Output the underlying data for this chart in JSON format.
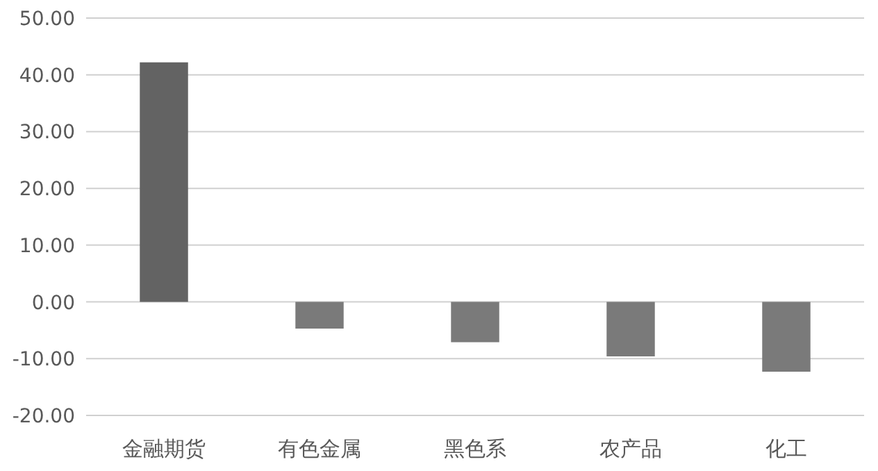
{
  "chart_data": {
    "type": "bar",
    "categories": [
      "金融期货",
      "有色金属",
      "黑色系",
      "农产品",
      "化工"
    ],
    "values": [
      42.2,
      -4.7,
      -7.1,
      -9.6,
      -12.3
    ],
    "colors": [
      "#636363",
      "#7a7a7a",
      "#7a7a7a",
      "#7a7a7a",
      "#7a7a7a"
    ],
    "ylim": [
      -20,
      50
    ],
    "yticks": [
      {
        "value": -20,
        "label": "-20.00"
      },
      {
        "value": -10,
        "label": "-10.00"
      },
      {
        "value": 0,
        "label": "0.00"
      },
      {
        "value": 10,
        "label": "10.00"
      },
      {
        "value": 20,
        "label": "20.00"
      },
      {
        "value": 30,
        "label": "30.00"
      },
      {
        "value": 40,
        "label": "40.00"
      },
      {
        "value": 50,
        "label": "50.00"
      }
    ],
    "grid": "y"
  }
}
